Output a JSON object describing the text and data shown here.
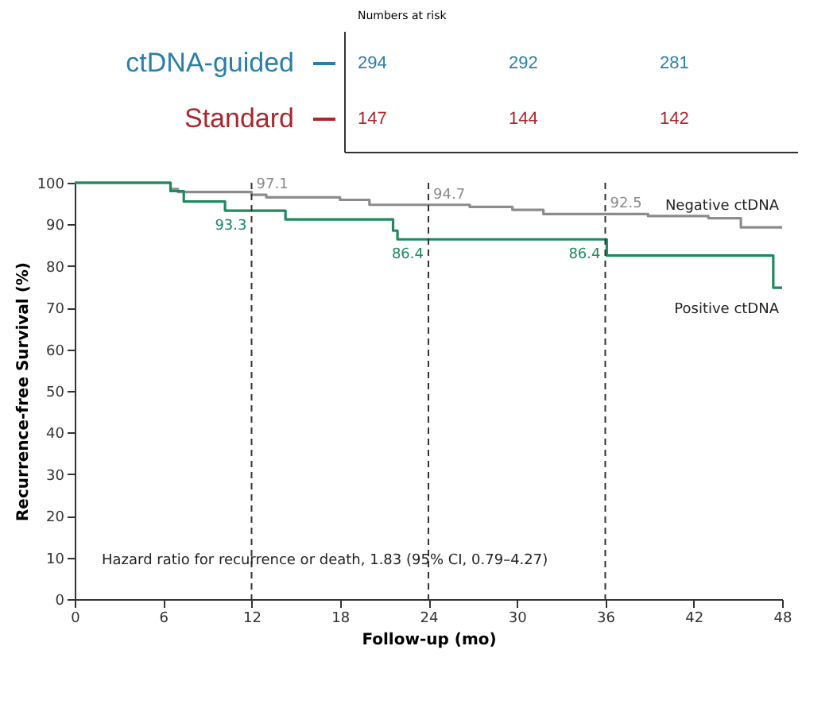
{
  "chart_data": [
    {
      "type": "other",
      "title": "Numbers at risk",
      "series": [
        {
          "name": "ctDNA-guided",
          "color": "#2b7fa6"
        },
        {
          "name": "Standard",
          "color": "#a8282e"
        }
      ],
      "annotations": [
        "294",
        "292",
        "281",
        "147",
        "144",
        "142"
      ]
    },
    {
      "type": "step",
      "xlabel": "Follow-up (mo)",
      "ylabel": "Recurrence-free Survival (%)",
      "xlim": [
        0,
        48
      ],
      "xticks": [
        0,
        6,
        12,
        18,
        24,
        30,
        36,
        42,
        48
      ],
      "ylim": [
        0,
        100
      ],
      "yticks": [
        0,
        10,
        20,
        30,
        40,
        50,
        60,
        70,
        80,
        90,
        100
      ],
      "grid": false,
      "legend": false,
      "series": [
        {
          "name": "Negative ctDNA",
          "color": "#8c8c8c",
          "x": [
            0,
            6.5,
            7.0,
            12,
            13,
            18,
            20,
            24,
            26.8,
            29.7,
            31.8,
            36,
            38.9,
            43,
            45.2,
            48
          ],
          "values": [
            100,
            98.5,
            97.8,
            97.1,
            96.5,
            95.9,
            94.7,
            94.7,
            94.2,
            93.5,
            92.5,
            92.5,
            92,
            91.5,
            89.3,
            89.3
          ],
          "value_labels": [
            null,
            null,
            null,
            "97.1",
            null,
            null,
            null,
            "94.7",
            null,
            null,
            null,
            "92.5",
            null,
            null,
            null,
            null
          ]
        },
        {
          "name": "Positive ctDNA",
          "color": "#1e8a5e",
          "x": [
            0,
            6.5,
            7.4,
            10.2,
            12,
            14.3,
            21.6,
            21.9,
            24,
            36,
            36.1,
            47.4,
            48
          ],
          "values": [
            100,
            98,
            95.5,
            93.3,
            93.3,
            91.2,
            88.5,
            86.4,
            86.4,
            86.4,
            82.5,
            74.8,
            74.8
          ],
          "value_labels": [
            null,
            null,
            null,
            null,
            "93.3",
            null,
            null,
            null,
            "86.4",
            "86.4",
            null,
            null,
            null
          ]
        }
      ],
      "ref_lines": [
        {
          "axis": "x",
          "value": 12,
          "color": "#333333",
          "line_style": "dashed"
        },
        {
          "axis": "x",
          "value": 24,
          "color": "#333333",
          "line_style": "dashed"
        },
        {
          "axis": "x",
          "value": 36,
          "color": "#333333",
          "line_style": "dashed"
        }
      ],
      "annotations": [
        "Hazard ratio for recurrence or death, 1.83 (95% CI, 0.79–4.27)"
      ]
    }
  ]
}
